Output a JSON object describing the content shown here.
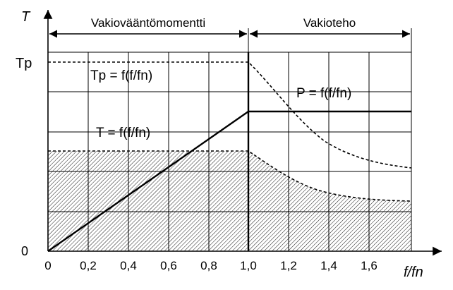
{
  "diagram": {
    "y_axis_label": "T",
    "x_axis_label": "f/fn",
    "region_constant_torque": "Vakiovääntömomentti",
    "region_constant_power": "Vakioteho",
    "tp_label": "Tp",
    "zero_label": "0",
    "eq_tp": "Tp = f(f/fn)",
    "eq_t": "T = f(f/fn)",
    "eq_p": "P = f(f/fn)",
    "x_ticks": [
      "0",
      "0,2",
      "0,4",
      "0,6",
      "0,8",
      "1,0",
      "1,2",
      "1,4",
      "1,6"
    ]
  },
  "chart_data": {
    "type": "line",
    "xlabel": "f/fn",
    "ylabel": "T",
    "xlim": [
      0,
      1.8
    ],
    "x_ticks": [
      0,
      0.2,
      0.4,
      0.6,
      0.8,
      1.0,
      1.2,
      1.4,
      1.6
    ],
    "series": [
      {
        "name": "Tp = f(f/fn)",
        "style": "dashed",
        "x": [
          0,
          1.0,
          1.2,
          1.4,
          1.6,
          1.8
        ],
        "y": [
          1.0,
          1.0,
          0.83,
          0.71,
          0.63,
          0.56
        ]
      },
      {
        "name": "T = f(f/fn)",
        "style": "solid",
        "x": [
          0,
          1.0
        ],
        "y": [
          0,
          0.73
        ]
      },
      {
        "name": "P = f(f/fn)",
        "style": "solid",
        "x": [
          1.0,
          1.8
        ],
        "y": [
          0.73,
          0.73
        ]
      },
      {
        "style": "dashed",
        "x": [
          0,
          1.0,
          1.2,
          1.4,
          1.6,
          1.8
        ],
        "y": [
          0.52,
          0.52,
          0.44,
          0.37,
          0.33,
          0.3
        ]
      }
    ],
    "regions": [
      "Vakiovääntömomentti",
      "Vakioteho"
    ],
    "grid": true
  }
}
